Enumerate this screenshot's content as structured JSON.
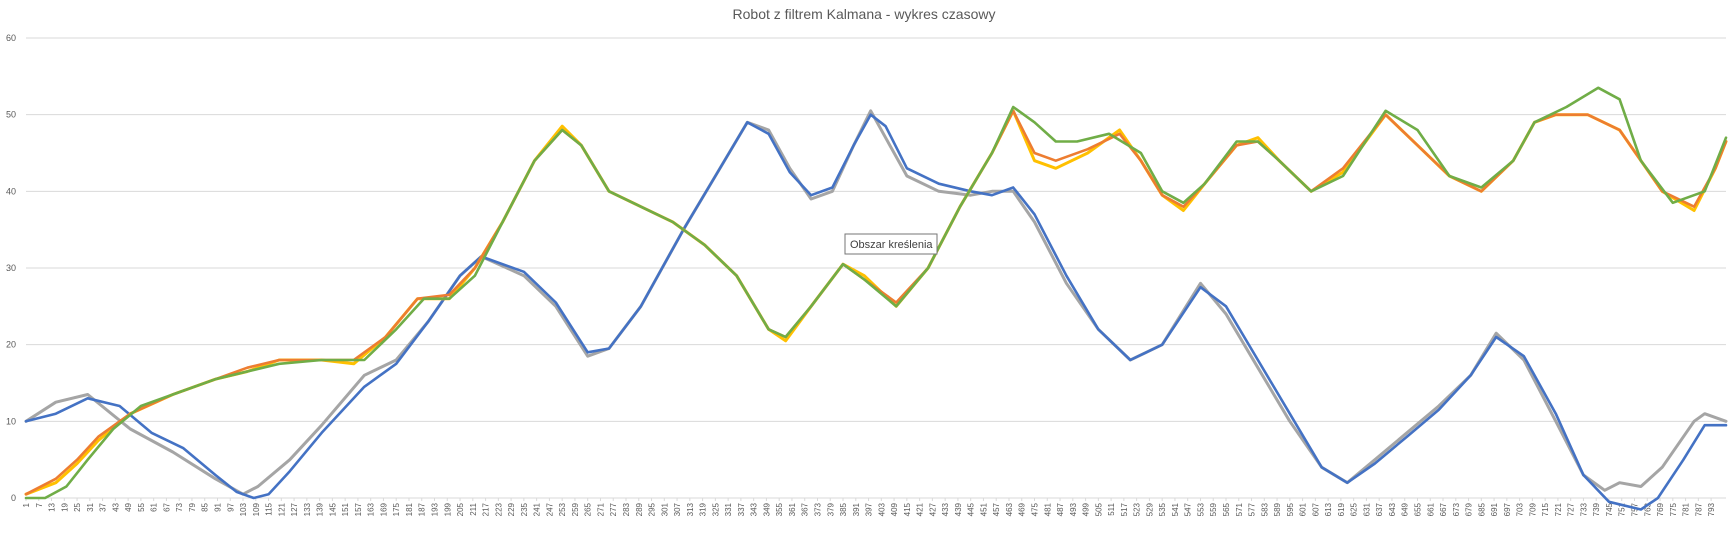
{
  "chart_data": {
    "type": "line",
    "title": "Robot z filtrem Kalmana - wykres czasowy",
    "xlabel": "",
    "ylabel": "",
    "ylim": [
      0,
      60
    ],
    "xlim": [
      1,
      800
    ],
    "y_ticks": [
      0,
      10,
      20,
      30,
      40,
      50,
      60
    ],
    "x_tick_start": 1,
    "x_tick_step": 6,
    "x_tick_end": 793,
    "grid": true,
    "legend": "none",
    "tooltip": "Obszar kreślenia",
    "series": [
      {
        "color": "#a5a5a5",
        "points": [
          [
            1,
            10
          ],
          [
            15,
            12.5
          ],
          [
            30,
            13.5
          ],
          [
            50,
            9
          ],
          [
            70,
            6
          ],
          [
            90,
            2.5
          ],
          [
            103,
            0.5
          ],
          [
            110,
            1.5
          ],
          [
            125,
            5
          ],
          [
            140,
            9.5
          ],
          [
            160,
            16
          ],
          [
            175,
            18
          ],
          [
            190,
            23
          ],
          [
            205,
            29
          ],
          [
            215,
            31.5
          ],
          [
            235,
            29
          ],
          [
            250,
            25
          ],
          [
            265,
            18.5
          ],
          [
            275,
            19.5
          ],
          [
            290,
            25
          ],
          [
            310,
            35
          ],
          [
            325,
            42
          ],
          [
            340,
            49
          ],
          [
            350,
            48
          ],
          [
            360,
            43
          ],
          [
            370,
            39
          ],
          [
            380,
            40
          ],
          [
            390,
            46
          ],
          [
            398,
            50.5
          ],
          [
            405,
            47
          ],
          [
            415,
            42
          ],
          [
            430,
            40
          ],
          [
            445,
            39.5
          ],
          [
            455,
            40
          ],
          [
            465,
            40
          ],
          [
            475,
            36
          ],
          [
            490,
            28
          ],
          [
            505,
            22
          ],
          [
            520,
            18
          ],
          [
            535,
            20
          ],
          [
            553,
            28
          ],
          [
            565,
            24
          ],
          [
            580,
            17
          ],
          [
            595,
            10
          ],
          [
            610,
            4
          ],
          [
            622,
            2
          ],
          [
            635,
            5
          ],
          [
            650,
            8.5
          ],
          [
            665,
            12
          ],
          [
            680,
            16
          ],
          [
            692,
            21.5
          ],
          [
            705,
            18
          ],
          [
            720,
            10
          ],
          [
            733,
            3
          ],
          [
            743,
            1
          ],
          [
            750,
            2
          ],
          [
            760,
            1.5
          ],
          [
            770,
            4
          ],
          [
            785,
            10
          ],
          [
            790,
            11
          ],
          [
            800,
            10
          ]
        ]
      },
      {
        "color": "#4472c4",
        "points": [
          [
            1,
            10
          ],
          [
            15,
            11
          ],
          [
            30,
            13
          ],
          [
            45,
            12
          ],
          [
            60,
            8.5
          ],
          [
            75,
            6.5
          ],
          [
            90,
            3
          ],
          [
            100,
            0.8
          ],
          [
            108,
            0
          ],
          [
            115,
            0.5
          ],
          [
            125,
            3.5
          ],
          [
            140,
            8.5
          ],
          [
            160,
            14.5
          ],
          [
            175,
            17.5
          ],
          [
            190,
            23
          ],
          [
            205,
            29
          ],
          [
            215,
            31.5
          ],
          [
            235,
            29.5
          ],
          [
            250,
            25.5
          ],
          [
            265,
            19
          ],
          [
            275,
            19.5
          ],
          [
            290,
            25
          ],
          [
            310,
            35
          ],
          [
            325,
            42
          ],
          [
            340,
            49
          ],
          [
            350,
            47.5
          ],
          [
            360,
            42.5
          ],
          [
            370,
            39.5
          ],
          [
            380,
            40.5
          ],
          [
            390,
            46
          ],
          [
            398,
            50
          ],
          [
            405,
            48.5
          ],
          [
            415,
            43
          ],
          [
            430,
            41
          ],
          [
            445,
            40
          ],
          [
            455,
            39.5
          ],
          [
            465,
            40.5
          ],
          [
            475,
            37
          ],
          [
            490,
            29
          ],
          [
            505,
            22
          ],
          [
            520,
            18
          ],
          [
            535,
            20
          ],
          [
            553,
            27.5
          ],
          [
            565,
            25
          ],
          [
            580,
            18
          ],
          [
            595,
            11
          ],
          [
            610,
            4
          ],
          [
            622,
            2
          ],
          [
            635,
            4.5
          ],
          [
            650,
            8
          ],
          [
            665,
            11.5
          ],
          [
            680,
            16
          ],
          [
            692,
            21
          ],
          [
            705,
            18.5
          ],
          [
            720,
            11
          ],
          [
            733,
            3
          ],
          [
            745,
            -0.5
          ],
          [
            760,
            -1.5
          ],
          [
            768,
            0
          ],
          [
            780,
            5
          ],
          [
            790,
            9.5
          ],
          [
            800,
            9.5
          ]
        ]
      },
      {
        "color": "#ffc000",
        "points": [
          [
            1,
            0.5
          ],
          [
            15,
            2
          ],
          [
            25,
            4.5
          ],
          [
            35,
            7.5
          ],
          [
            50,
            11
          ],
          [
            70,
            13.5
          ],
          [
            90,
            15.5
          ],
          [
            105,
            16.5
          ],
          [
            120,
            18
          ],
          [
            140,
            18
          ],
          [
            155,
            17.5
          ],
          [
            170,
            21
          ],
          [
            185,
            26
          ],
          [
            200,
            26
          ],
          [
            212,
            30
          ],
          [
            225,
            36
          ],
          [
            240,
            44
          ],
          [
            253,
            48.5
          ],
          [
            262,
            46
          ],
          [
            275,
            40
          ],
          [
            290,
            38
          ],
          [
            305,
            36
          ],
          [
            320,
            33
          ],
          [
            335,
            29
          ],
          [
            350,
            22
          ],
          [
            358,
            20.5
          ],
          [
            370,
            25
          ],
          [
            385,
            30.5
          ],
          [
            395,
            29
          ],
          [
            410,
            25
          ],
          [
            425,
            30
          ],
          [
            440,
            38
          ],
          [
            455,
            45
          ],
          [
            465,
            50.5
          ],
          [
            475,
            44
          ],
          [
            485,
            43
          ],
          [
            500,
            45
          ],
          [
            515,
            48
          ],
          [
            525,
            44
          ],
          [
            535,
            39.5
          ],
          [
            545,
            37.5
          ],
          [
            555,
            41
          ],
          [
            570,
            46
          ],
          [
            580,
            47
          ],
          [
            590,
            44
          ],
          [
            605,
            40
          ],
          [
            620,
            42.5
          ],
          [
            640,
            50
          ],
          [
            655,
            46
          ],
          [
            670,
            42
          ],
          [
            685,
            40
          ],
          [
            700,
            44
          ],
          [
            710,
            49
          ],
          [
            720,
            50
          ],
          [
            735,
            50
          ],
          [
            750,
            48
          ],
          [
            770,
            40
          ],
          [
            785,
            37.5
          ],
          [
            795,
            43
          ],
          [
            800,
            46.5
          ]
        ]
      },
      {
        "color": "#ed7d31",
        "points": [
          [
            1,
            0.5
          ],
          [
            15,
            2.5
          ],
          [
            25,
            5
          ],
          [
            35,
            8
          ],
          [
            50,
            11
          ],
          [
            70,
            13.5
          ],
          [
            90,
            15.5
          ],
          [
            105,
            17
          ],
          [
            120,
            18
          ],
          [
            140,
            18
          ],
          [
            155,
            18
          ],
          [
            170,
            21
          ],
          [
            185,
            26
          ],
          [
            200,
            26.5
          ],
          [
            212,
            30
          ],
          [
            225,
            36
          ],
          [
            240,
            44
          ],
          [
            253,
            48
          ],
          [
            262,
            46
          ],
          [
            275,
            40
          ],
          [
            290,
            38
          ],
          [
            305,
            36
          ],
          [
            320,
            33
          ],
          [
            335,
            29
          ],
          [
            350,
            22
          ],
          [
            358,
            21
          ],
          [
            370,
            25
          ],
          [
            385,
            30.5
          ],
          [
            395,
            28.5
          ],
          [
            410,
            25.5
          ],
          [
            425,
            30
          ],
          [
            440,
            38
          ],
          [
            455,
            45
          ],
          [
            465,
            50.5
          ],
          [
            475,
            45
          ],
          [
            485,
            44
          ],
          [
            500,
            45.5
          ],
          [
            515,
            47.5
          ],
          [
            525,
            44
          ],
          [
            535,
            39.5
          ],
          [
            545,
            38
          ],
          [
            555,
            41
          ],
          [
            570,
            46
          ],
          [
            580,
            46.5
          ],
          [
            590,
            44
          ],
          [
            605,
            40
          ],
          [
            620,
            43
          ],
          [
            640,
            50
          ],
          [
            655,
            46
          ],
          [
            670,
            42
          ],
          [
            685,
            40
          ],
          [
            700,
            44
          ],
          [
            710,
            49
          ],
          [
            720,
            50
          ],
          [
            735,
            50
          ],
          [
            750,
            48
          ],
          [
            770,
            40
          ],
          [
            785,
            38
          ],
          [
            795,
            43
          ],
          [
            800,
            46.5
          ]
        ]
      },
      {
        "color": "#70ad47",
        "points": [
          [
            1,
            0
          ],
          [
            10,
            0
          ],
          [
            20,
            1.5
          ],
          [
            30,
            5
          ],
          [
            42,
            9
          ],
          [
            55,
            12
          ],
          [
            70,
            13.5
          ],
          [
            90,
            15.5
          ],
          [
            105,
            16.5
          ],
          [
            120,
            17.5
          ],
          [
            140,
            18
          ],
          [
            160,
            18
          ],
          [
            175,
            22
          ],
          [
            188,
            26
          ],
          [
            200,
            26
          ],
          [
            212,
            29
          ],
          [
            225,
            36
          ],
          [
            240,
            44
          ],
          [
            253,
            48
          ],
          [
            262,
            46
          ],
          [
            275,
            40
          ],
          [
            290,
            38
          ],
          [
            305,
            36
          ],
          [
            320,
            33
          ],
          [
            335,
            29
          ],
          [
            350,
            22
          ],
          [
            358,
            21
          ],
          [
            370,
            25
          ],
          [
            385,
            30.5
          ],
          [
            395,
            28.5
          ],
          [
            410,
            25
          ],
          [
            425,
            30
          ],
          [
            440,
            38
          ],
          [
            455,
            45
          ],
          [
            465,
            51
          ],
          [
            475,
            49
          ],
          [
            485,
            46.5
          ],
          [
            495,
            46.5
          ],
          [
            510,
            47.5
          ],
          [
            525,
            45
          ],
          [
            535,
            40
          ],
          [
            545,
            38.5
          ],
          [
            555,
            41
          ],
          [
            570,
            46.5
          ],
          [
            580,
            46.5
          ],
          [
            590,
            44
          ],
          [
            605,
            40
          ],
          [
            620,
            42
          ],
          [
            640,
            50.5
          ],
          [
            655,
            48
          ],
          [
            670,
            42
          ],
          [
            685,
            40.5
          ],
          [
            700,
            44
          ],
          [
            710,
            49
          ],
          [
            725,
            51
          ],
          [
            740,
            53.5
          ],
          [
            750,
            52
          ],
          [
            760,
            44
          ],
          [
            775,
            38.5
          ],
          [
            790,
            40
          ],
          [
            800,
            47
          ]
        ]
      }
    ]
  }
}
